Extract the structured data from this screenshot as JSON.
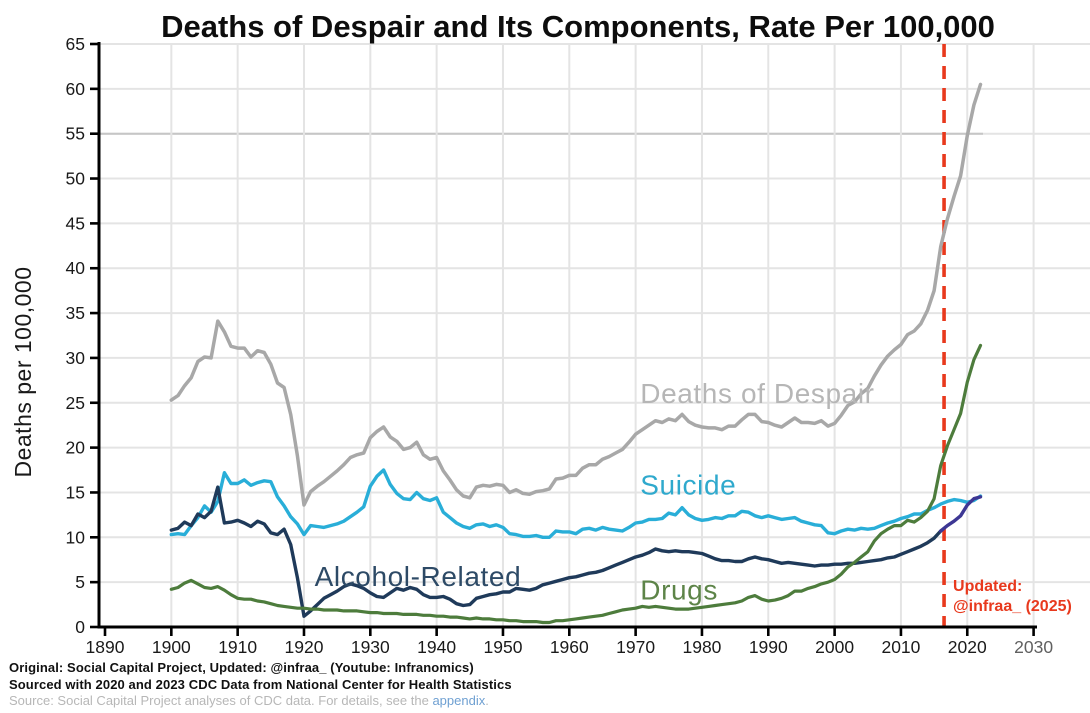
{
  "page": {
    "background": "#ffffff"
  },
  "chart_data": {
    "type": "line",
    "title": "Deaths of Despair and Its Components, Rate Per 100,000",
    "ylabel": "Deaths per 100,000",
    "xlabel": "",
    "xlim": [
      1890,
      2030
    ],
    "ylim": [
      0,
      65
    ],
    "grid": true,
    "x_ticks": [
      1890,
      1900,
      1910,
      1920,
      1930,
      1940,
      1950,
      1960,
      1970,
      1980,
      1990,
      2000,
      2010,
      2020,
      2030
    ],
    "muted_x_tick": 2030,
    "y_ticks": [
      0,
      5,
      10,
      15,
      20,
      25,
      30,
      35,
      40,
      45,
      50,
      55,
      60,
      65
    ],
    "darker_gridline_value": 55,
    "years": [
      1900,
      1901,
      1902,
      1903,
      1904,
      1905,
      1906,
      1907,
      1908,
      1909,
      1910,
      1911,
      1912,
      1913,
      1914,
      1915,
      1916,
      1917,
      1918,
      1919,
      1920,
      1921,
      1922,
      1923,
      1924,
      1925,
      1926,
      1927,
      1928,
      1929,
      1930,
      1931,
      1932,
      1933,
      1934,
      1935,
      1936,
      1937,
      1938,
      1939,
      1940,
      1941,
      1942,
      1943,
      1944,
      1945,
      1946,
      1947,
      1948,
      1949,
      1950,
      1951,
      1952,
      1953,
      1954,
      1955,
      1956,
      1957,
      1958,
      1959,
      1960,
      1961,
      1962,
      1963,
      1964,
      1965,
      1966,
      1967,
      1968,
      1969,
      1970,
      1971,
      1972,
      1973,
      1974,
      1975,
      1976,
      1977,
      1978,
      1979,
      1980,
      1981,
      1982,
      1983,
      1984,
      1985,
      1986,
      1987,
      1988,
      1989,
      1990,
      1991,
      1992,
      1993,
      1994,
      1995,
      1996,
      1997,
      1998,
      1999,
      2000,
      2001,
      2002,
      2003,
      2004,
      2005,
      2006,
      2007,
      2008,
      2009,
      2010,
      2011,
      2012,
      2013,
      2014,
      2015,
      2016,
      2017,
      2018,
      2019,
      2020,
      2021,
      2022
    ],
    "series": [
      {
        "name": "Deaths of Despair",
        "color": "#a8a8a8",
        "width": 3.5,
        "values": [
          25.3,
          25.8,
          26.9,
          27.8,
          29.6,
          30.1,
          30.0,
          34.1,
          32.9,
          31.3,
          31.1,
          31.1,
          30.1,
          30.8,
          30.6,
          29.3,
          27.2,
          26.7,
          23.7,
          19.1,
          13.6,
          15.1,
          15.7,
          16.2,
          16.8,
          17.4,
          18.1,
          18.9,
          19.2,
          19.4,
          21.1,
          21.8,
          22.3,
          21.2,
          20.7,
          19.8,
          20.0,
          20.6,
          19.2,
          18.7,
          18.9,
          17.4,
          16.4,
          15.3,
          14.6,
          14.4,
          15.6,
          15.8,
          15.7,
          15.9,
          15.8,
          15.0,
          15.3,
          14.9,
          14.8,
          15.1,
          15.2,
          15.4,
          16.5,
          16.6,
          16.9,
          16.9,
          17.7,
          18.1,
          18.1,
          18.7,
          19.0,
          19.4,
          19.8,
          20.6,
          21.5,
          22.0,
          22.5,
          23.0,
          22.8,
          23.2,
          23.0,
          23.7,
          22.9,
          22.5,
          22.3,
          22.2,
          22.2,
          22.0,
          22.4,
          22.4,
          23.1,
          23.7,
          23.7,
          22.9,
          22.8,
          22.5,
          22.3,
          22.8,
          23.3,
          22.8,
          22.8,
          22.7,
          23.0,
          22.4,
          22.7,
          23.6,
          24.7,
          25.1,
          26.0,
          26.6,
          28.0,
          29.2,
          30.2,
          30.9,
          31.5,
          32.6,
          33.0,
          33.8,
          35.3,
          37.5,
          42.4,
          45.5,
          48.0,
          50.3,
          54.8,
          58.2,
          60.5
        ]
      },
      {
        "name": "Suicide",
        "color": "#29aed8",
        "width": 3.4,
        "values": [
          10.3,
          10.4,
          10.3,
          11.3,
          12.2,
          13.5,
          12.8,
          14.0,
          17.2,
          16.0,
          16.0,
          16.4,
          15.8,
          16.1,
          16.3,
          16.2,
          14.5,
          13.5,
          12.3,
          11.5,
          10.3,
          11.3,
          11.2,
          11.1,
          11.3,
          11.5,
          11.8,
          12.3,
          12.8,
          13.4,
          15.7,
          16.8,
          17.5,
          15.9,
          14.9,
          14.3,
          14.2,
          15.0,
          14.3,
          14.1,
          14.4,
          12.8,
          12.2,
          11.6,
          11.2,
          11.0,
          11.4,
          11.5,
          11.2,
          11.4,
          11.1,
          10.4,
          10.3,
          10.1,
          10.1,
          10.2,
          10.0,
          10.0,
          10.7,
          10.6,
          10.6,
          10.4,
          10.9,
          11.0,
          10.8,
          11.1,
          10.9,
          10.8,
          10.7,
          11.1,
          11.6,
          11.7,
          12.0,
          12.0,
          12.1,
          12.7,
          12.5,
          13.3,
          12.5,
          12.1,
          11.9,
          12.0,
          12.2,
          12.1,
          12.4,
          12.4,
          12.9,
          12.8,
          12.4,
          12.2,
          12.4,
          12.2,
          12.0,
          12.1,
          12.2,
          11.8,
          11.6,
          11.4,
          11.3,
          10.5,
          10.4,
          10.7,
          10.9,
          10.8,
          11.0,
          10.9,
          11.0,
          11.3,
          11.6,
          11.8,
          12.1,
          12.3,
          12.6,
          12.6,
          13.0,
          13.3,
          13.7,
          14.0,
          14.2,
          14.1,
          13.9,
          14.1,
          14.6
        ]
      },
      {
        "name": "Alcohol-Related",
        "color": "#1f3a5a",
        "width": 3.4,
        "updated_from_year": 2016,
        "updated_color": "#3d3794",
        "values": [
          10.8,
          11.0,
          11.7,
          11.3,
          12.6,
          12.2,
          12.9,
          15.6,
          11.6,
          11.7,
          11.9,
          11.6,
          11.2,
          11.8,
          11.5,
          10.5,
          10.3,
          10.9,
          9.2,
          5.5,
          1.2,
          1.8,
          2.5,
          3.2,
          3.6,
          4.0,
          4.5,
          4.8,
          4.6,
          4.3,
          3.8,
          3.4,
          3.3,
          3.8,
          4.3,
          4.1,
          4.4,
          4.2,
          3.6,
          3.3,
          3.3,
          3.4,
          3.1,
          2.6,
          2.4,
          2.5,
          3.2,
          3.4,
          3.6,
          3.7,
          3.9,
          3.9,
          4.3,
          4.2,
          4.1,
          4.3,
          4.7,
          4.9,
          5.1,
          5.3,
          5.5,
          5.6,
          5.8,
          6.0,
          6.1,
          6.3,
          6.6,
          6.9,
          7.2,
          7.5,
          7.8,
          8.0,
          8.3,
          8.7,
          8.5,
          8.4,
          8.5,
          8.4,
          8.4,
          8.3,
          8.2,
          7.9,
          7.6,
          7.4,
          7.4,
          7.3,
          7.3,
          7.6,
          7.8,
          7.6,
          7.5,
          7.3,
          7.1,
          7.2,
          7.1,
          7.0,
          6.9,
          6.8,
          6.9,
          6.9,
          7.0,
          7.0,
          7.1,
          7.1,
          7.2,
          7.3,
          7.4,
          7.5,
          7.7,
          7.8,
          8.1,
          8.4,
          8.7,
          9.0,
          9.4,
          9.9,
          10.7,
          11.3,
          11.8,
          12.4,
          13.6,
          14.3,
          14.5
        ]
      },
      {
        "name": "Drugs",
        "color": "#4d7c3c",
        "width": 3.2,
        "values": [
          4.2,
          4.4,
          4.9,
          5.2,
          4.8,
          4.4,
          4.3,
          4.5,
          4.1,
          3.6,
          3.2,
          3.1,
          3.1,
          2.9,
          2.8,
          2.6,
          2.4,
          2.3,
          2.2,
          2.1,
          2.1,
          2.0,
          2.0,
          1.9,
          1.9,
          1.9,
          1.8,
          1.8,
          1.8,
          1.7,
          1.6,
          1.6,
          1.5,
          1.5,
          1.5,
          1.4,
          1.4,
          1.4,
          1.3,
          1.3,
          1.2,
          1.2,
          1.1,
          1.1,
          1.0,
          0.9,
          1.0,
          0.9,
          0.9,
          0.8,
          0.8,
          0.7,
          0.7,
          0.6,
          0.6,
          0.6,
          0.5,
          0.5,
          0.7,
          0.7,
          0.8,
          0.9,
          1.0,
          1.1,
          1.2,
          1.3,
          1.5,
          1.7,
          1.9,
          2.0,
          2.1,
          2.3,
          2.2,
          2.3,
          2.2,
          2.1,
          2.0,
          2.0,
          2.0,
          2.1,
          2.2,
          2.3,
          2.4,
          2.5,
          2.6,
          2.7,
          2.9,
          3.3,
          3.5,
          3.1,
          2.9,
          3.0,
          3.2,
          3.5,
          4.0,
          4.0,
          4.3,
          4.5,
          4.8,
          5.0,
          5.3,
          5.9,
          6.7,
          7.2,
          7.8,
          8.4,
          9.6,
          10.4,
          10.9,
          11.3,
          11.3,
          11.9,
          11.7,
          12.2,
          12.9,
          14.3,
          18.0,
          20.2,
          22.0,
          23.8,
          27.3,
          29.8,
          31.4
        ]
      }
    ],
    "series_labels": [
      {
        "text": "Deaths of Despair",
        "x": 1970.7,
        "y": 25.0,
        "color": "#b6b6b6"
      },
      {
        "text": "Suicide",
        "x": 1970.7,
        "y": 14.75,
        "color": "#2fa9cd"
      },
      {
        "text": "Alcohol-Related",
        "x": 1921.6,
        "y": 4.55,
        "color": "#2d4a66"
      },
      {
        "text": "Drugs",
        "x": 1970.7,
        "y": 3.05,
        "color": "#5d8448"
      }
    ],
    "annotation": {
      "line1": "Updated:",
      "line2": "@infraa_ (2025)",
      "x_year": 2016.5,
      "color": "#e8391d"
    },
    "colors": {
      "grid": "#e4e4e4",
      "grid_dark": "#c6c6c6",
      "axis": "#000000",
      "tick_label": "#1a1a1a",
      "muted_tick_label": "#606060",
      "cutoff_line": "#e8391d"
    },
    "legend_position": "inline-labels"
  },
  "footer": {
    "line1": "Original: Social Capital Project, Updated: @infraa_ (Youtube: Infranomics)",
    "line2": "Sourced with 2020 and 2023 CDC Data from National Center for Health Statistics",
    "line3_prefix": "Source: Social Capital Project analyses of CDC data. For details, see the ",
    "appendix_link": "appendix",
    "line3_suffix": ".",
    "link_color": "#6fa0d2"
  }
}
